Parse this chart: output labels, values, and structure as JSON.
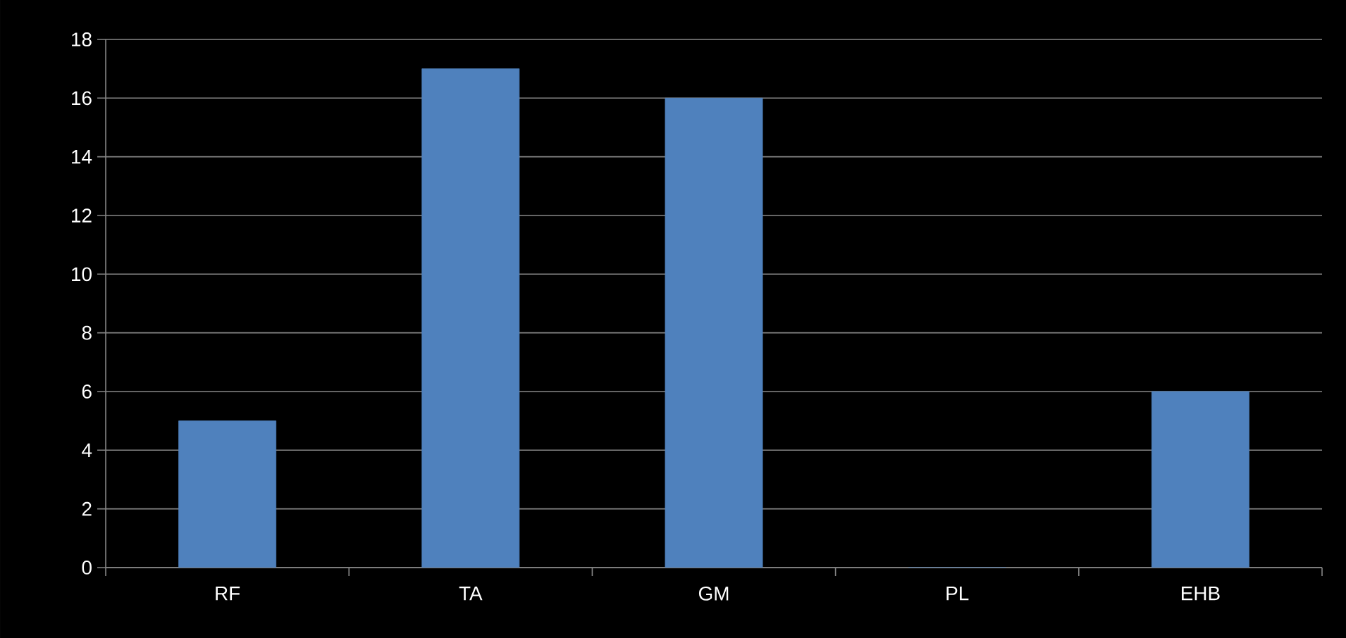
{
  "chart_data": {
    "type": "bar",
    "categories": [
      "RF",
      "TA",
      "GM",
      "PL",
      "EHB"
    ],
    "values": [
      5,
      17,
      16,
      0,
      6
    ],
    "color": "#4f81bd",
    "ylim": [
      0,
      18
    ],
    "yticks": [
      0,
      2,
      4,
      6,
      8,
      10,
      12,
      14,
      16,
      18
    ],
    "grid": "y"
  }
}
